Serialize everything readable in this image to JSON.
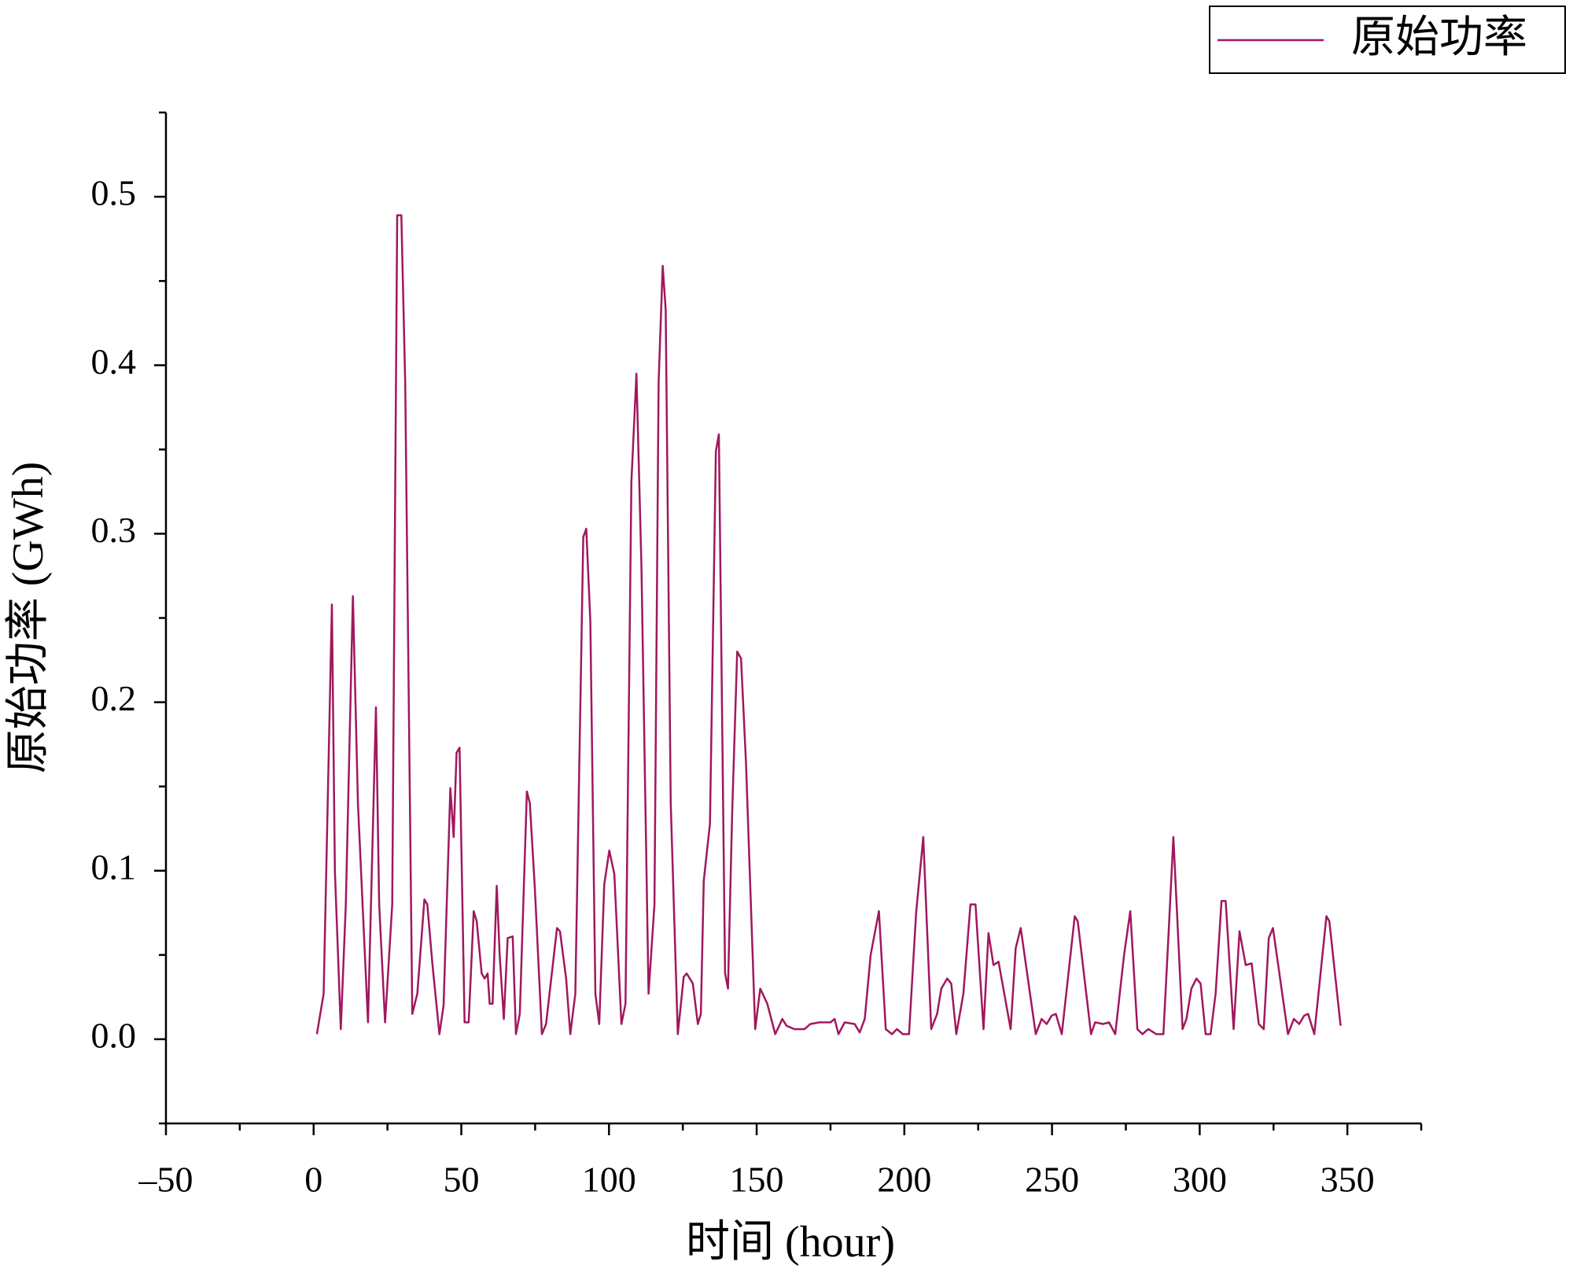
{
  "chart_data": {
    "type": "line",
    "xlabel": "时间 (hour)",
    "ylabel": "原始功率 (GWh)",
    "legend": "top-right",
    "x": [
      1.1,
      3.4,
      6.2,
      7.2,
      9.2,
      10.9,
      13.3,
      15,
      18.4,
      21.1,
      22.2,
      24.2,
      26.6,
      28.3,
      29.7,
      31,
      33.4,
      35.1,
      37.5,
      38.5,
      40.2,
      42.6,
      44,
      46.3,
      47.4,
      48.4,
      49.4,
      51.1,
      52.5,
      54.2,
      55.2,
      56.9,
      57.9,
      58.9,
      59.6,
      60.6,
      62,
      63,
      64.4,
      65.7,
      67.4,
      68.5,
      69.8,
      72.2,
      73.2,
      74.9,
      77.3,
      78.7,
      82.4,
      83.4,
      85.5,
      86.9,
      88.6,
      91.3,
      92.3,
      93.7,
      95.4,
      96.7,
      98.4,
      100.1,
      101.8,
      104.2,
      105.6,
      107.6,
      109.3,
      111,
      113.4,
      115.4,
      116.8,
      118.2,
      119.2,
      120.9,
      123.3,
      125.3,
      126.3,
      128.4,
      130.1,
      131.1,
      132.1,
      134.2,
      136.2,
      137.2,
      139.3,
      140.3,
      141.7,
      143.4,
      144.7,
      146.4,
      149.5,
      151.2,
      153.6,
      156.3,
      158.7,
      160.1,
      162.8,
      166.2,
      168.2,
      171.3,
      175,
      176.4,
      177.7,
      179.8,
      183.2,
      184.9,
      186.6,
      188.6,
      191.4,
      193.7,
      195.8,
      197.5,
      199.5,
      201.6,
      204,
      206.4,
      209.1,
      211.1,
      212.5,
      214.5,
      215.9,
      217.6,
      220,
      222.4,
      224.1,
      226.8,
      228.5,
      230.2,
      231.9,
      236,
      237.7,
      239.4,
      244.5,
      246.5,
      248.2,
      249.9,
      251.3,
      253.3,
      257.7,
      258.7,
      263.2,
      264.6,
      267.3,
      269.3,
      271.4,
      274.4,
      276.5,
      278.9,
      280.6,
      282.6,
      285.3,
      287.7,
      289.4,
      291.1,
      294.2,
      295.5,
      297.2,
      298.9,
      300.3,
      302,
      303.7,
      305.4,
      307.4,
      308.8,
      311.5,
      313.5,
      315.6,
      317.6,
      320,
      321.7,
      323.4,
      324.8,
      329.9,
      331.9,
      333.7,
      335.4,
      336.7,
      338.8,
      342.9,
      343.9,
      347.7
    ],
    "series": [
      {
        "name": "原始功率",
        "color": "#a0185e",
        "values": [
          0.003,
          0.027,
          0.258,
          0.1,
          0.006,
          0.08,
          0.263,
          0.14,
          0.01,
          0.197,
          0.08,
          0.01,
          0.08,
          0.489,
          0.489,
          0.39,
          0.015,
          0.027,
          0.083,
          0.08,
          0.045,
          0.003,
          0.02,
          0.149,
          0.12,
          0.17,
          0.173,
          0.01,
          0.01,
          0.076,
          0.07,
          0.039,
          0.036,
          0.039,
          0.021,
          0.021,
          0.091,
          0.05,
          0.012,
          0.06,
          0.061,
          0.003,
          0.015,
          0.147,
          0.14,
          0.09,
          0.003,
          0.009,
          0.066,
          0.064,
          0.036,
          0.003,
          0.027,
          0.298,
          0.303,
          0.248,
          0.027,
          0.009,
          0.092,
          0.112,
          0.098,
          0.009,
          0.021,
          0.331,
          0.395,
          0.28,
          0.027,
          0.08,
          0.39,
          0.459,
          0.433,
          0.14,
          0.003,
          0.037,
          0.039,
          0.033,
          0.009,
          0.015,
          0.094,
          0.128,
          0.349,
          0.359,
          0.039,
          0.03,
          0.134,
          0.23,
          0.226,
          0.164,
          0.006,
          0.03,
          0.021,
          0.003,
          0.012,
          0.008,
          0.006,
          0.006,
          0.009,
          0.01,
          0.01,
          0.012,
          0.003,
          0.01,
          0.009,
          0.004,
          0.012,
          0.05,
          0.076,
          0.006,
          0.003,
          0.006,
          0.003,
          0.003,
          0.075,
          0.12,
          0.006,
          0.015,
          0.03,
          0.036,
          0.033,
          0.003,
          0.027,
          0.08,
          0.08,
          0.006,
          0.063,
          0.044,
          0.046,
          0.006,
          0.054,
          0.066,
          0.003,
          0.012,
          0.009,
          0.014,
          0.015,
          0.003,
          0.073,
          0.07,
          0.003,
          0.01,
          0.009,
          0.01,
          0.003,
          0.05,
          0.076,
          0.006,
          0.003,
          0.006,
          0.003,
          0.003,
          0.06,
          0.12,
          0.006,
          0.012,
          0.03,
          0.036,
          0.033,
          0.003,
          0.003,
          0.027,
          0.082,
          0.082,
          0.006,
          0.064,
          0.044,
          0.045,
          0.009,
          0.006,
          0.06,
          0.066,
          0.003,
          0.012,
          0.009,
          0.014,
          0.015,
          0.003,
          0.073,
          0.07,
          0.008
        ]
      }
    ],
    "xlim": [
      -50,
      375
    ],
    "ylim": [
      -0.05,
      0.55
    ],
    "xticks": [
      {
        "value": -50,
        "label": "–50"
      },
      0,
      50,
      100,
      150,
      200,
      250,
      300,
      350
    ],
    "yticks": [
      {
        "value": 0,
        "label": "0.0"
      },
      0.1,
      0.2,
      0.3,
      0.4,
      0.5
    ],
    "xminorticks": [
      -25,
      25,
      75,
      125,
      175,
      225,
      275,
      325,
      375
    ],
    "yminorticks": [
      -0.05,
      0.05,
      0.15,
      0.25,
      0.35,
      0.45,
      0.55
    ]
  }
}
